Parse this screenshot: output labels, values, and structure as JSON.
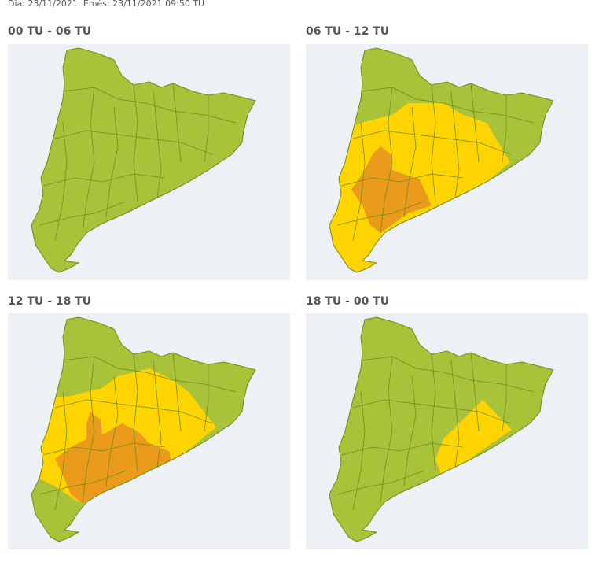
{
  "header": {
    "text": "Dia: 23/11/2021. Emès: 23/11/2021 09:50 TU"
  },
  "panels": [
    {
      "title": "00 TU - 06 TU"
    },
    {
      "title": "06 TU - 12 TU"
    },
    {
      "title": "12 TU - 18 TU"
    },
    {
      "title": "18 TU - 00 TU"
    }
  ]
}
